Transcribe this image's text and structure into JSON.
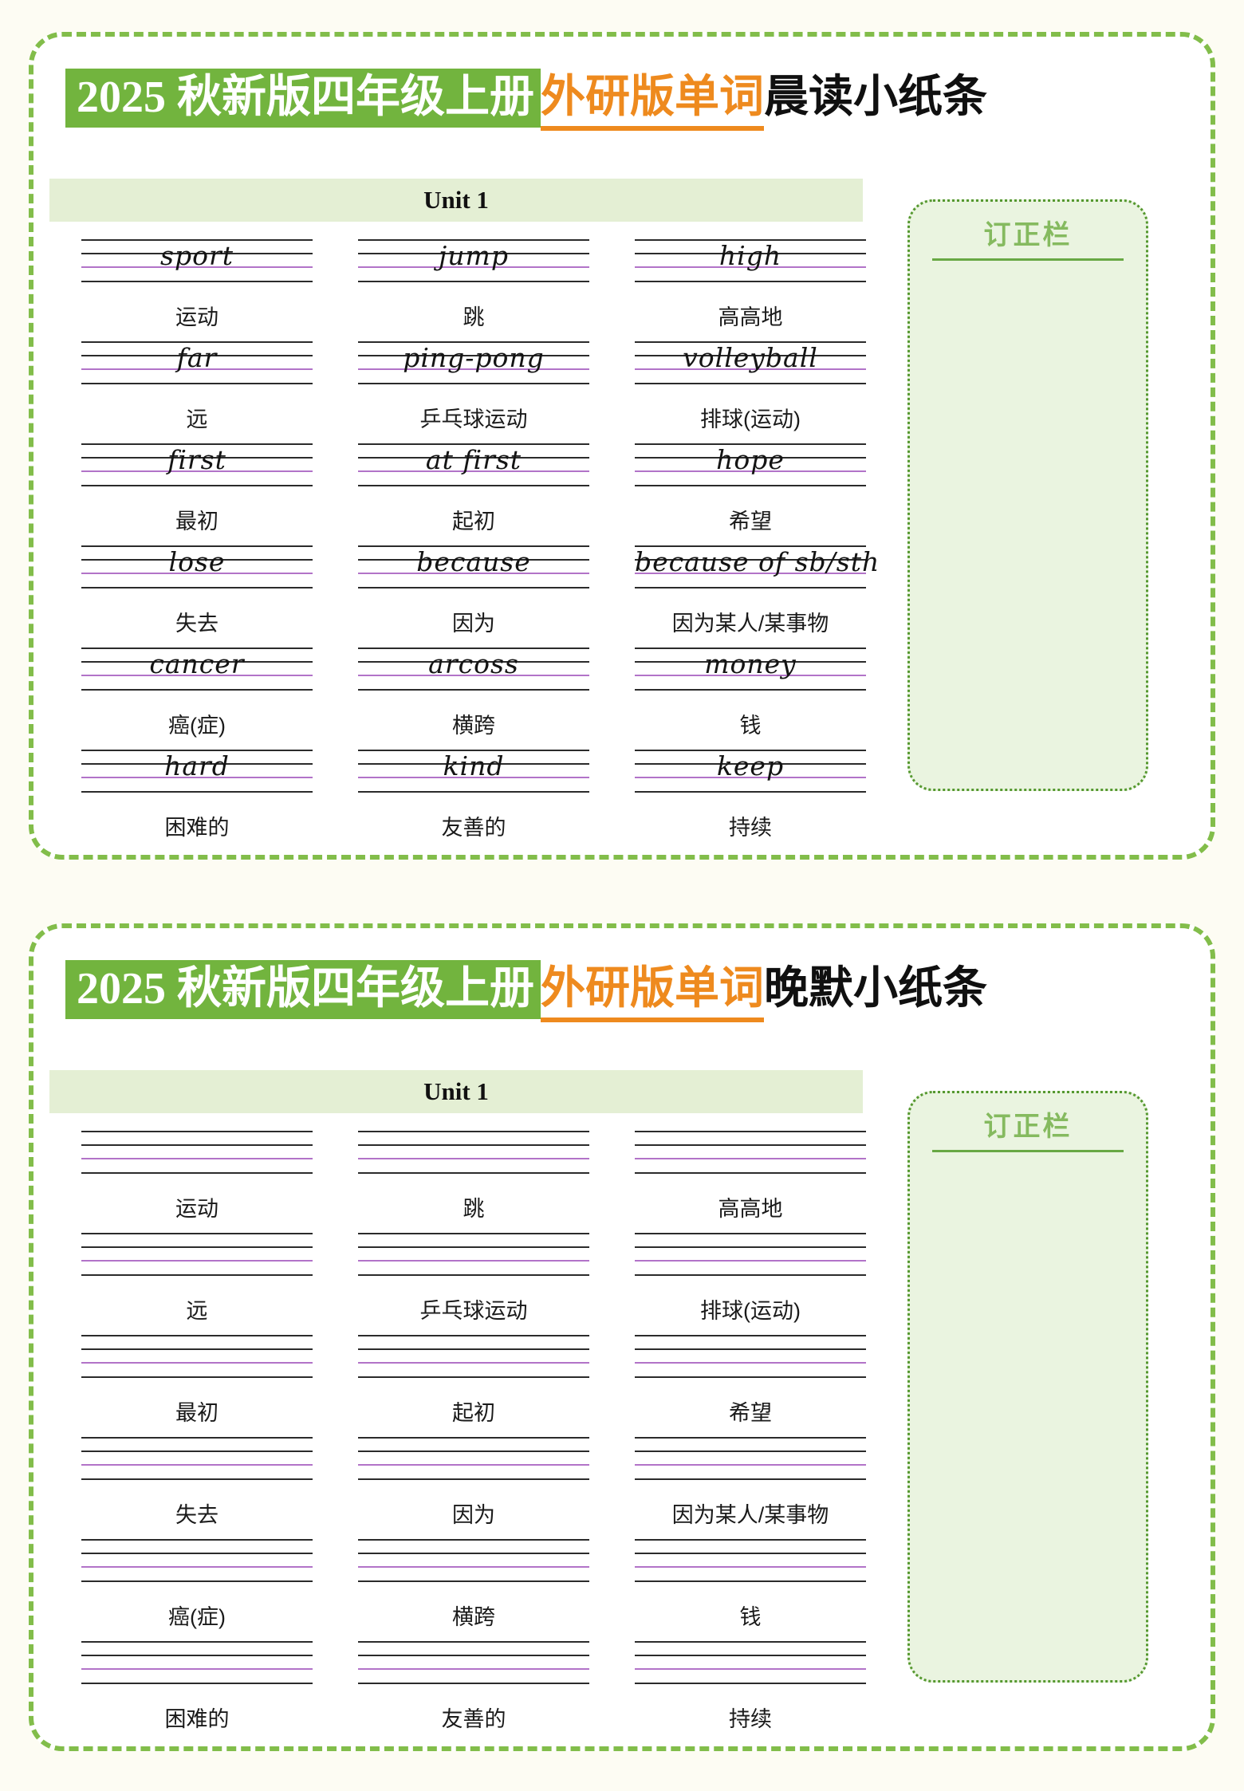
{
  "colors": {
    "panel_border_green": "#82bd4a",
    "title_highlight_bg": "#72b43e",
    "title_highlight_fg": "#ffffff",
    "title_orange": "#ee8a1e",
    "title_black": "#101010",
    "unit_bar_bg": "#e4efd4",
    "correction_bg": "#eaf4e0",
    "correction_border": "#55982f",
    "correction_title": "#85ba5f",
    "rule_line_black": "#2b2b2b",
    "rule_line_purple": "#b273c8"
  },
  "panels": [
    {
      "title": {
        "highlight": "2025 秋新版四年级上册",
        "orange": "外研版单词",
        "rest": "晨读小纸条"
      },
      "unit_label": "Unit 1",
      "correction_label": "订正栏",
      "cells": [
        {
          "en": "sport",
          "cn": "运动"
        },
        {
          "en": "jump",
          "cn": "跳"
        },
        {
          "en": "high",
          "cn": "高高地"
        },
        {
          "en": "far",
          "cn": "远"
        },
        {
          "en": "ping-pong",
          "cn": "乒乓球运动"
        },
        {
          "en": "volleyball",
          "cn": "排球(运动)"
        },
        {
          "en": "first",
          "cn": "最初"
        },
        {
          "en": "at first",
          "cn": "起初"
        },
        {
          "en": "hope",
          "cn": "希望"
        },
        {
          "en": "lose",
          "cn": "失去"
        },
        {
          "en": "because",
          "cn": "因为"
        },
        {
          "en": "because of sb/sth",
          "cn": "因为某人/某事物"
        },
        {
          "en": "cancer",
          "cn": "癌(症)"
        },
        {
          "en": "arcoss",
          "cn": "横跨"
        },
        {
          "en": "money",
          "cn": "钱"
        },
        {
          "en": "hard",
          "cn": "困难的"
        },
        {
          "en": "kind",
          "cn": "友善的"
        },
        {
          "en": "keep",
          "cn": "持续"
        }
      ]
    },
    {
      "title": {
        "highlight": "2025 秋新版四年级上册",
        "orange": "外研版单词",
        "rest": "晚默小纸条"
      },
      "unit_label": "Unit 1",
      "correction_label": "订正栏",
      "cells": [
        {
          "en": "",
          "cn": "运动"
        },
        {
          "en": "",
          "cn": "跳"
        },
        {
          "en": "",
          "cn": "高高地"
        },
        {
          "en": "",
          "cn": "远"
        },
        {
          "en": "",
          "cn": "乒乓球运动"
        },
        {
          "en": "",
          "cn": "排球(运动)"
        },
        {
          "en": "",
          "cn": "最初"
        },
        {
          "en": "",
          "cn": "起初"
        },
        {
          "en": "",
          "cn": "希望"
        },
        {
          "en": "",
          "cn": "失去"
        },
        {
          "en": "",
          "cn": "因为"
        },
        {
          "en": "",
          "cn": "因为某人/某事物"
        },
        {
          "en": "",
          "cn": "癌(症)"
        },
        {
          "en": "",
          "cn": "横跨"
        },
        {
          "en": "",
          "cn": "钱"
        },
        {
          "en": "",
          "cn": "困难的"
        },
        {
          "en": "",
          "cn": "友善的"
        },
        {
          "en": "",
          "cn": "持续"
        }
      ]
    }
  ]
}
